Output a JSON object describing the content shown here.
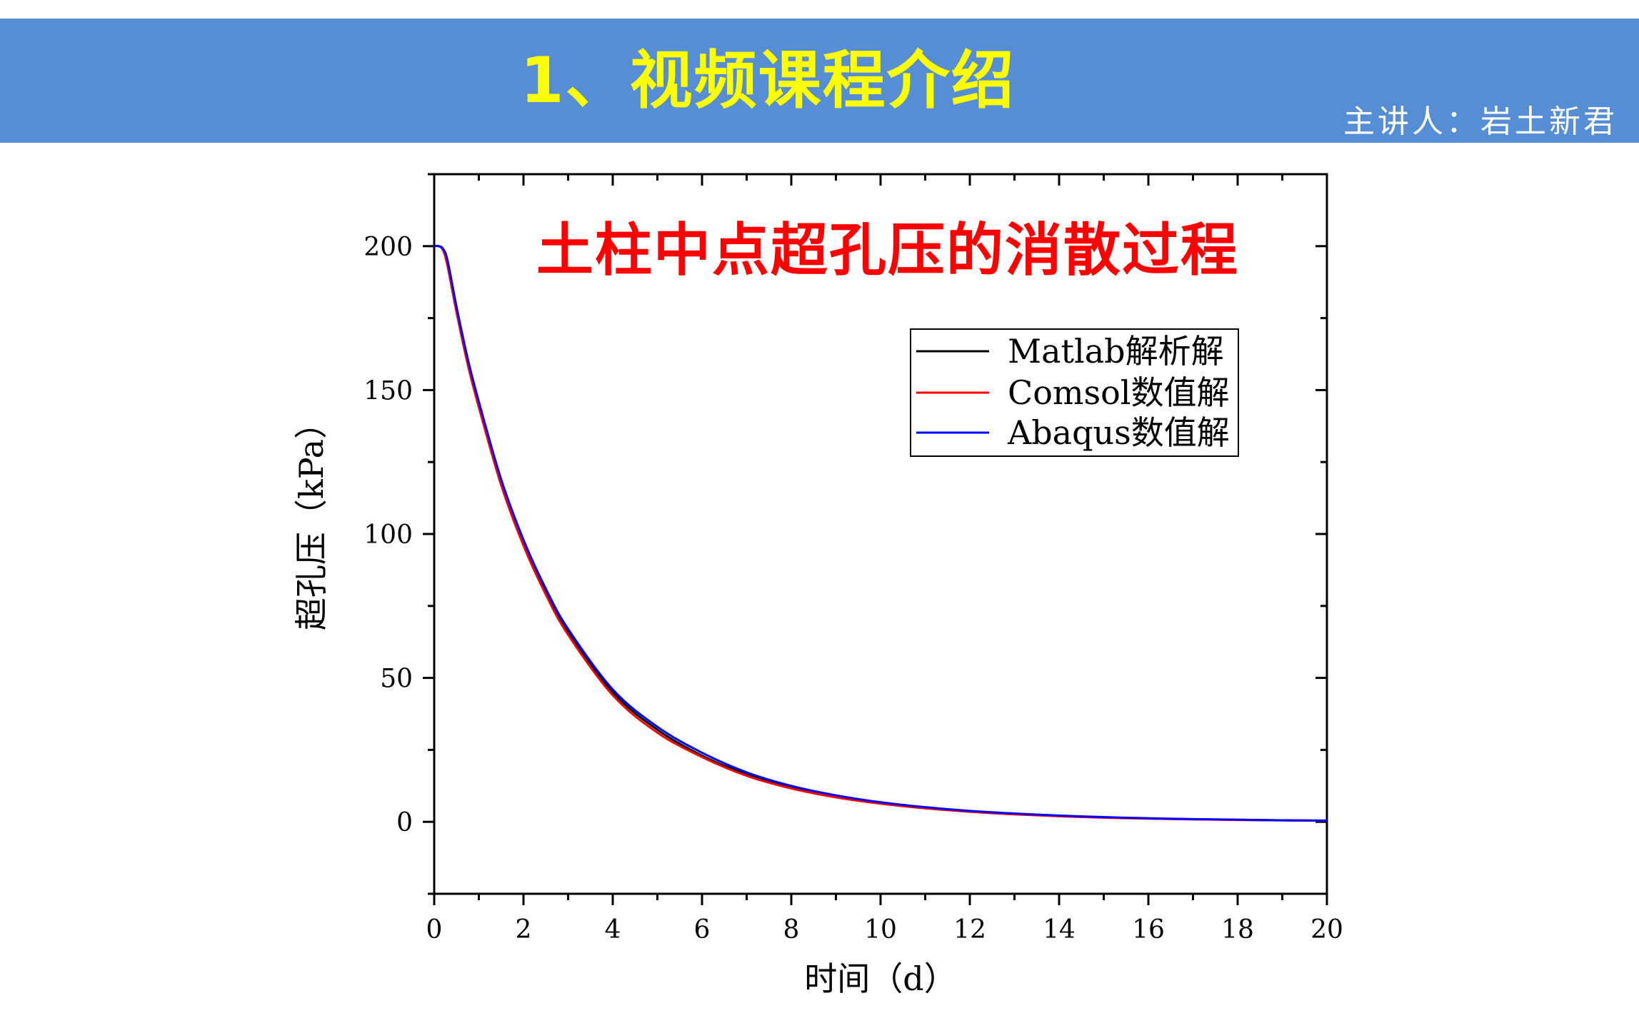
{
  "banner": {
    "title": "1、视频课程介绍",
    "lecturer": "主讲人：岩土新君",
    "background_color": "#558ed5",
    "title_color": "#ffff00",
    "lecturer_color": "#ffffff"
  },
  "chart_data": {
    "type": "line",
    "title": "土柱中点超孔压的消散过程",
    "title_color": "#ff0000",
    "xlabel": "时间（d）",
    "ylabel": "超孔压（kPa）",
    "xlim": [
      0,
      20
    ],
    "ylim": [
      -25,
      225
    ],
    "xticks": [
      0,
      2,
      4,
      6,
      8,
      10,
      12,
      14,
      16,
      18,
      20
    ],
    "yticks": [
      0,
      50,
      100,
      150,
      200
    ],
    "xtick_labels": [
      "0",
      "2",
      "4",
      "6",
      "8",
      "10",
      "12",
      "14",
      "16",
      "18",
      "20"
    ],
    "ytick_labels": [
      "0",
      "50",
      "100",
      "150",
      "200"
    ],
    "grid": false,
    "legend_position": "upper-right",
    "x": [
      0,
      0.1,
      0.2,
      0.3,
      0.5,
      0.75,
      1,
      1.5,
      2,
      2.5,
      3,
      4,
      5,
      6,
      7,
      8,
      9,
      10,
      11,
      12,
      13,
      14,
      15,
      16,
      17,
      18,
      19,
      20
    ],
    "series": [
      {
        "name": "Matlab解析解",
        "color": "#000000",
        "values": [
          200,
          200,
          199,
          194,
          178,
          160,
          145,
          118,
          97,
          80,
          66,
          45,
          32,
          23,
          16.5,
          12,
          8.8,
          6.5,
          4.8,
          3.6,
          2.7,
          2.0,
          1.5,
          1.15,
          0.9,
          0.7,
          0.5,
          0.4
        ]
      },
      {
        "name": "Comsol数值解",
        "color": "#ff0000",
        "values": [
          200,
          200,
          198.5,
          193,
          177,
          159,
          144,
          117,
          96,
          79,
          65,
          44,
          31,
          22.5,
          16,
          11.6,
          8.5,
          6.3,
          4.7,
          3.5,
          2.6,
          1.95,
          1.45,
          1.1,
          0.85,
          0.65,
          0.5,
          0.4
        ]
      },
      {
        "name": "Abaqus数值解",
        "color": "#0000ff",
        "values": [
          200,
          200,
          199,
          195,
          179,
          161,
          146,
          119,
          98,
          81,
          67,
          46,
          33,
          24,
          17.2,
          12.5,
          9.2,
          6.8,
          5.1,
          3.8,
          2.9,
          2.2,
          1.65,
          1.25,
          0.95,
          0.75,
          0.55,
          0.45
        ]
      }
    ]
  }
}
